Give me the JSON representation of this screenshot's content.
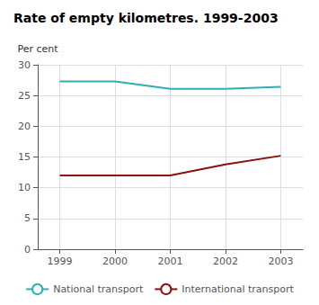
{
  "chart_data": {
    "type": "line",
    "title": "Rate of empty kilometres. 1999-2003",
    "ylabel": "Per cent",
    "x": [
      1999,
      2000,
      2001,
      2002,
      2003
    ],
    "series": [
      {
        "name": "National transport",
        "color": "#2db0b0",
        "values": [
          27.3,
          27.3,
          26.1,
          26.1,
          26.4
        ]
      },
      {
        "name": "International transport",
        "color": "#8b1010",
        "values": [
          12.0,
          12.0,
          12.0,
          13.8,
          15.2
        ]
      }
    ],
    "xlim": [
      1998.6,
      2003.4
    ],
    "xticks": [
      1999,
      2000,
      2001,
      2002,
      2003
    ],
    "ylim": [
      0,
      30
    ],
    "yticks": [
      0,
      5,
      10,
      15,
      20,
      25,
      30
    ],
    "grid": true,
    "legend": "bottom"
  }
}
